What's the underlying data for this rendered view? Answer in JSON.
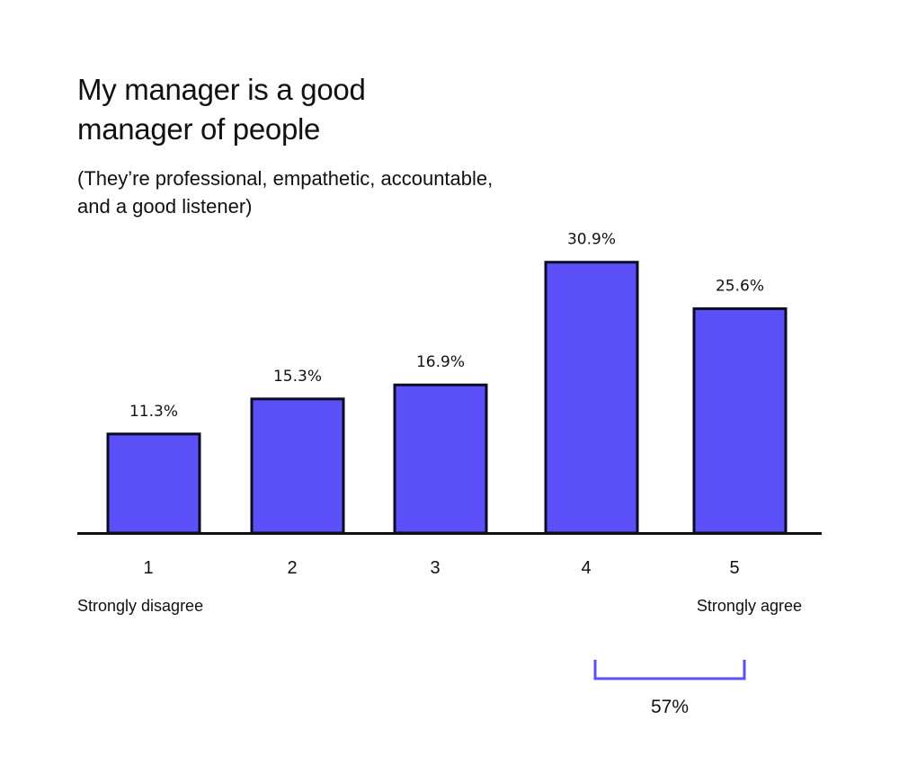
{
  "colors": {
    "bar_fill": "#5b50f8",
    "bar_stroke": "#0b0b24",
    "axis": "#111111",
    "bracket": "#5b50f8",
    "text": "#111111"
  },
  "header": {
    "title_line_1": "My manager is a good",
    "title_line_2": "manager of people",
    "subtitle_line_1": "(They’re professional, empathetic, accountable,",
    "subtitle_line_2": "and a good listener)"
  },
  "chart_data": {
    "type": "bar",
    "categories": [
      "1",
      "2",
      "3",
      "4",
      "5"
    ],
    "values": [
      11.3,
      15.3,
      16.9,
      30.9,
      25.6
    ],
    "value_labels": [
      "11.3%",
      "15.3%",
      "16.9%",
      "30.9%",
      "25.6%"
    ],
    "title": "My manager is a good manager of people",
    "subtitle": "(They’re professional, empathetic, accountable, and a good listener)",
    "xlabel": "",
    "ylabel": "",
    "ylim": [
      0,
      40
    ],
    "grid": false,
    "legend": "none",
    "scale_endpoints": {
      "low": "Strongly disagree",
      "high": "Strongly agree"
    },
    "annotation": {
      "text": "57%",
      "spans_categories": [
        "4",
        "5"
      ]
    }
  }
}
